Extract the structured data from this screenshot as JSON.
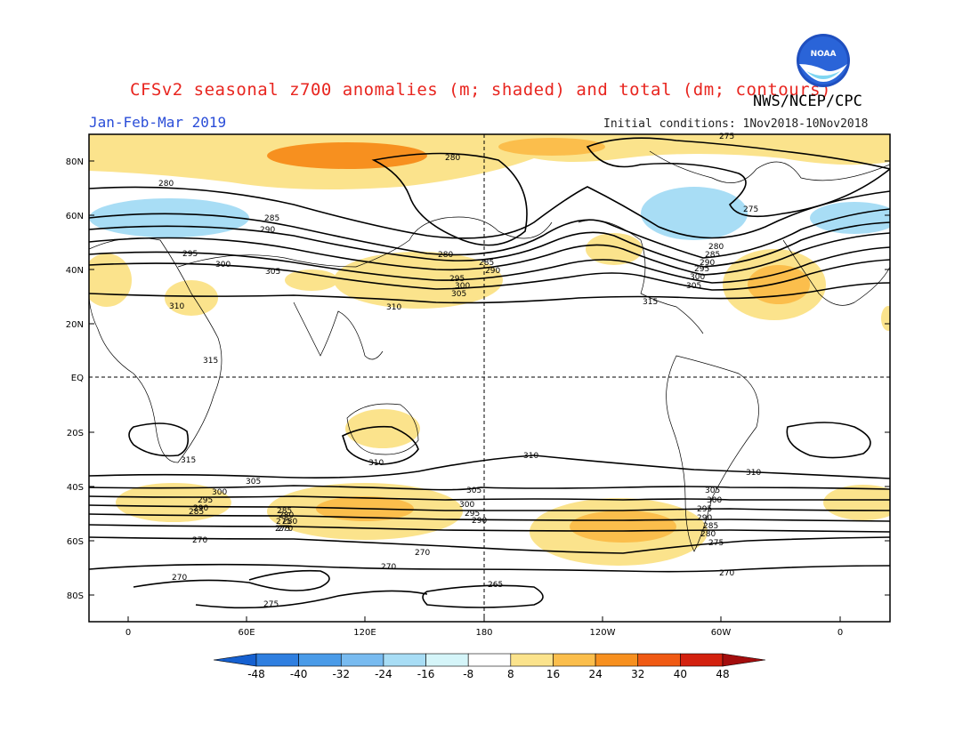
{
  "title": "CFSv2 seasonal z700 anomalies (m; shaded) and total (dm; contours)",
  "agency": "NWS/NCEP/CPC",
  "logo_text": "NOAA",
  "period": "Jan-Feb-Mar 2019",
  "initial_conditions": "Initial conditions: 1Nov2018-10Nov2018",
  "map": {
    "lat_ticks": [
      "80N",
      "60N",
      "40N",
      "20N",
      "EQ",
      "20S",
      "40S",
      "60S",
      "80S"
    ],
    "lon_ticks": [
      "0",
      "60E",
      "120E",
      "180",
      "120W",
      "60W",
      "0"
    ],
    "contour_labels": [
      "275",
      "280",
      "280",
      "275",
      "280",
      "285",
      "290",
      "295",
      "300",
      "305",
      "310",
      "285",
      "290",
      "295",
      "300",
      "305",
      "310",
      "315",
      "315",
      "315",
      "310",
      "310",
      "310",
      "305",
      "300",
      "295",
      "290",
      "285",
      "280",
      "275",
      "270",
      "305",
      "300",
      "295",
      "290",
      "285",
      "280",
      "275",
      "270",
      "270",
      "270",
      "270",
      "265",
      "275"
    ],
    "labels_extra": [
      "280",
      "285",
      "290",
      "295",
      "300",
      "305",
      "305",
      "300",
      "295",
      "290",
      "285",
      "280",
      "275",
      "270"
    ]
  },
  "colorbar": {
    "labels": [
      "-48",
      "-40",
      "-32",
      "-24",
      "-16",
      "-8",
      "8",
      "16",
      "24",
      "32",
      "40",
      "48"
    ],
    "colors": [
      "#1560d0",
      "#2f7fe0",
      "#4a9be8",
      "#78bbf0",
      "#a8ddf5",
      "#d5f5f9",
      "#ffffff",
      "#fbe38c",
      "#fbbe4c",
      "#f7901f",
      "#f05a14",
      "#d3210f",
      "#a30d0d"
    ]
  }
}
